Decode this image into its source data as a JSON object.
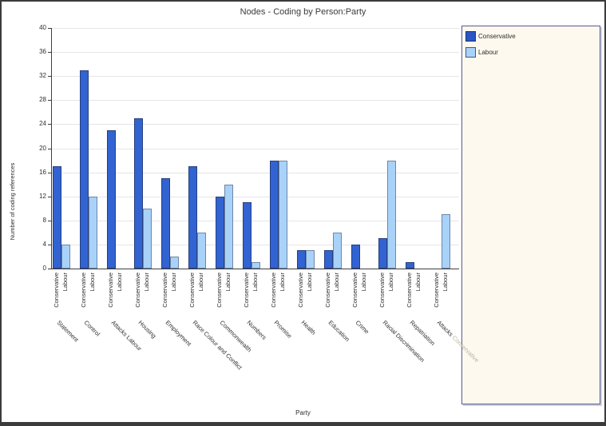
{
  "chart_data": {
    "type": "bar",
    "title": "Nodes - Coding by Person:Party",
    "xlabel": "Party",
    "ylabel": "Number of coding references",
    "ylim": [
      0,
      40
    ],
    "yticks": [
      0,
      4,
      8,
      12,
      16,
      20,
      24,
      28,
      32,
      36,
      40
    ],
    "grid": true,
    "legend_position": "right",
    "group_sublabels": [
      "Conservative",
      "Labour"
    ],
    "categories": [
      "Statement",
      "Control",
      "Attacks Labour",
      "Housing",
      "Employment",
      "Race Colour and Conflict",
      "Commonwealth",
      "Numbers",
      "Promise",
      "Health",
      "Education",
      "Crime",
      "Racial Discrimination",
      "Repatriation",
      "Attacks Conservative"
    ],
    "series": [
      {
        "name": "Conservative",
        "color": "#3263d2",
        "border_color": "#27407c",
        "values": [
          17,
          33,
          23,
          25,
          15,
          17,
          12,
          11,
          18,
          3,
          3,
          4,
          5,
          1,
          0
        ]
      },
      {
        "name": "Labour",
        "color": "#a9d2f8",
        "border_color": "#6e86a8",
        "values": [
          4,
          12,
          0,
          10,
          2,
          6,
          14,
          1,
          18,
          3,
          6,
          0,
          18,
          0,
          9
        ]
      }
    ],
    "clipped_category_label": {
      "category": "Attacks Conservative",
      "dark_part": "Attacks ",
      "faded_part": "Conservative",
      "faded_color": "#b9b1a0"
    }
  },
  "legend": {
    "items": [
      {
        "label": "Conservative",
        "swatch_color": "#2b55c4",
        "swatch_border": "#1e356e"
      },
      {
        "label": "Labour",
        "swatch_color": "#a9d2f8",
        "swatch_border": "#44557e"
      }
    ],
    "panel_background": "#fdf9ef",
    "panel_border": "#5a5a92"
  },
  "colors": {
    "gridline": "#e5e5e5",
    "axis": "#3f3f3f",
    "text": "#2e2e2e",
    "title": "#3a3a3a",
    "frame_border": "#3b3b3b"
  }
}
